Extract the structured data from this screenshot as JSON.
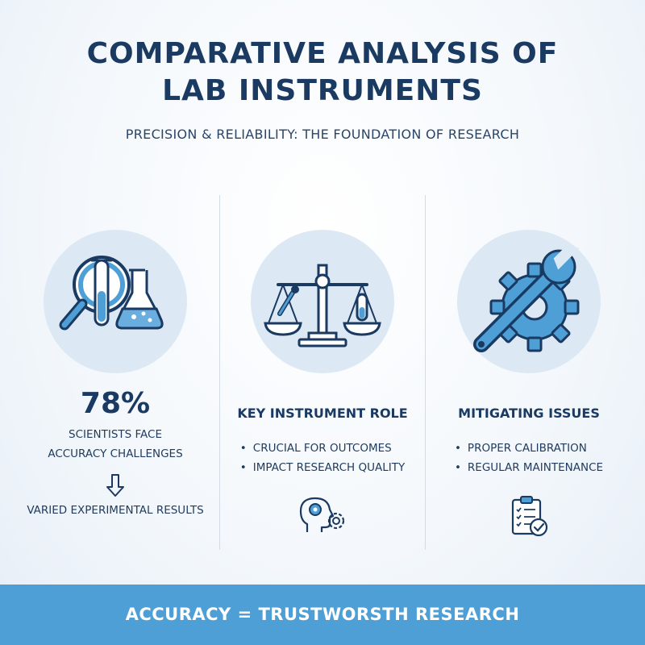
{
  "header": {
    "title_line1": "COMPARATIVE ANALYSIS OF",
    "title_line2": "LAB INSTRUMENTS",
    "subtitle": "PRECISION & RELIABILITY: THE FOUNDATION OF RESEARCH"
  },
  "columns": [
    {
      "icon": "magnifier-test-tube-flask-icon",
      "stat": "78%",
      "desc_line1": "SCIENTISTS FACE",
      "desc_line2": "ACCURACY CHALLENGES",
      "arrow_icon": "arrow-down-icon",
      "result": "VARIED EXPERIMENTAL RESULTS"
    },
    {
      "icon": "balance-scale-icon",
      "title": "KEY INSTRUMENT ROLE",
      "bullets": [
        "CRUCIAL FOR OUTCOMES",
        "IMPACT RESEARCH QUALITY"
      ],
      "small_icon": "head-gears-icon"
    },
    {
      "icon": "wrench-gear-icon",
      "title": "MITIGATING ISSUES",
      "bullets": [
        "PROPER CALIBRATION",
        "REGULAR MAINTENANCE"
      ],
      "small_icon": "clipboard-check-icon"
    }
  ],
  "footer": {
    "text": "ACCURACY = TRUSTWORSTH RESEARCH"
  },
  "colors": {
    "navy": "#1a3a62",
    "accent_blue": "#4e9fd6",
    "circle_bg": "#dce9f5",
    "footer_bg": "#4e9fd6"
  }
}
